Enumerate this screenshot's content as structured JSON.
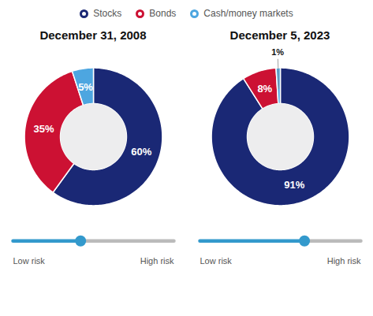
{
  "chart_data": [
    {
      "type": "pie",
      "title": "December 31, 2008",
      "categories": [
        "Stocks",
        "Bonds",
        "Cash/money markets"
      ],
      "values": [
        60,
        35,
        5
      ],
      "value_labels": [
        "60%",
        "35%",
        "5%"
      ],
      "colors": [
        "#1a2875",
        "#cc1133",
        "#4da6e0"
      ],
      "data_labels": true,
      "legend": "top",
      "slider": {
        "position": 0.42,
        "labels": [
          "Low risk",
          "High risk"
        ]
      }
    },
    {
      "type": "pie",
      "title": "December 5, 2023",
      "categories": [
        "Stocks",
        "Bonds",
        "Cash/money markets"
      ],
      "values": [
        91,
        8,
        1
      ],
      "value_labels": [
        "91%",
        "8%",
        "1%"
      ],
      "colors": [
        "#1a2875",
        "#cc1133",
        "#4da6e0"
      ],
      "data_labels": true,
      "slider": {
        "position": 0.65,
        "labels": [
          "Low risk",
          "High risk"
        ]
      }
    }
  ]
}
